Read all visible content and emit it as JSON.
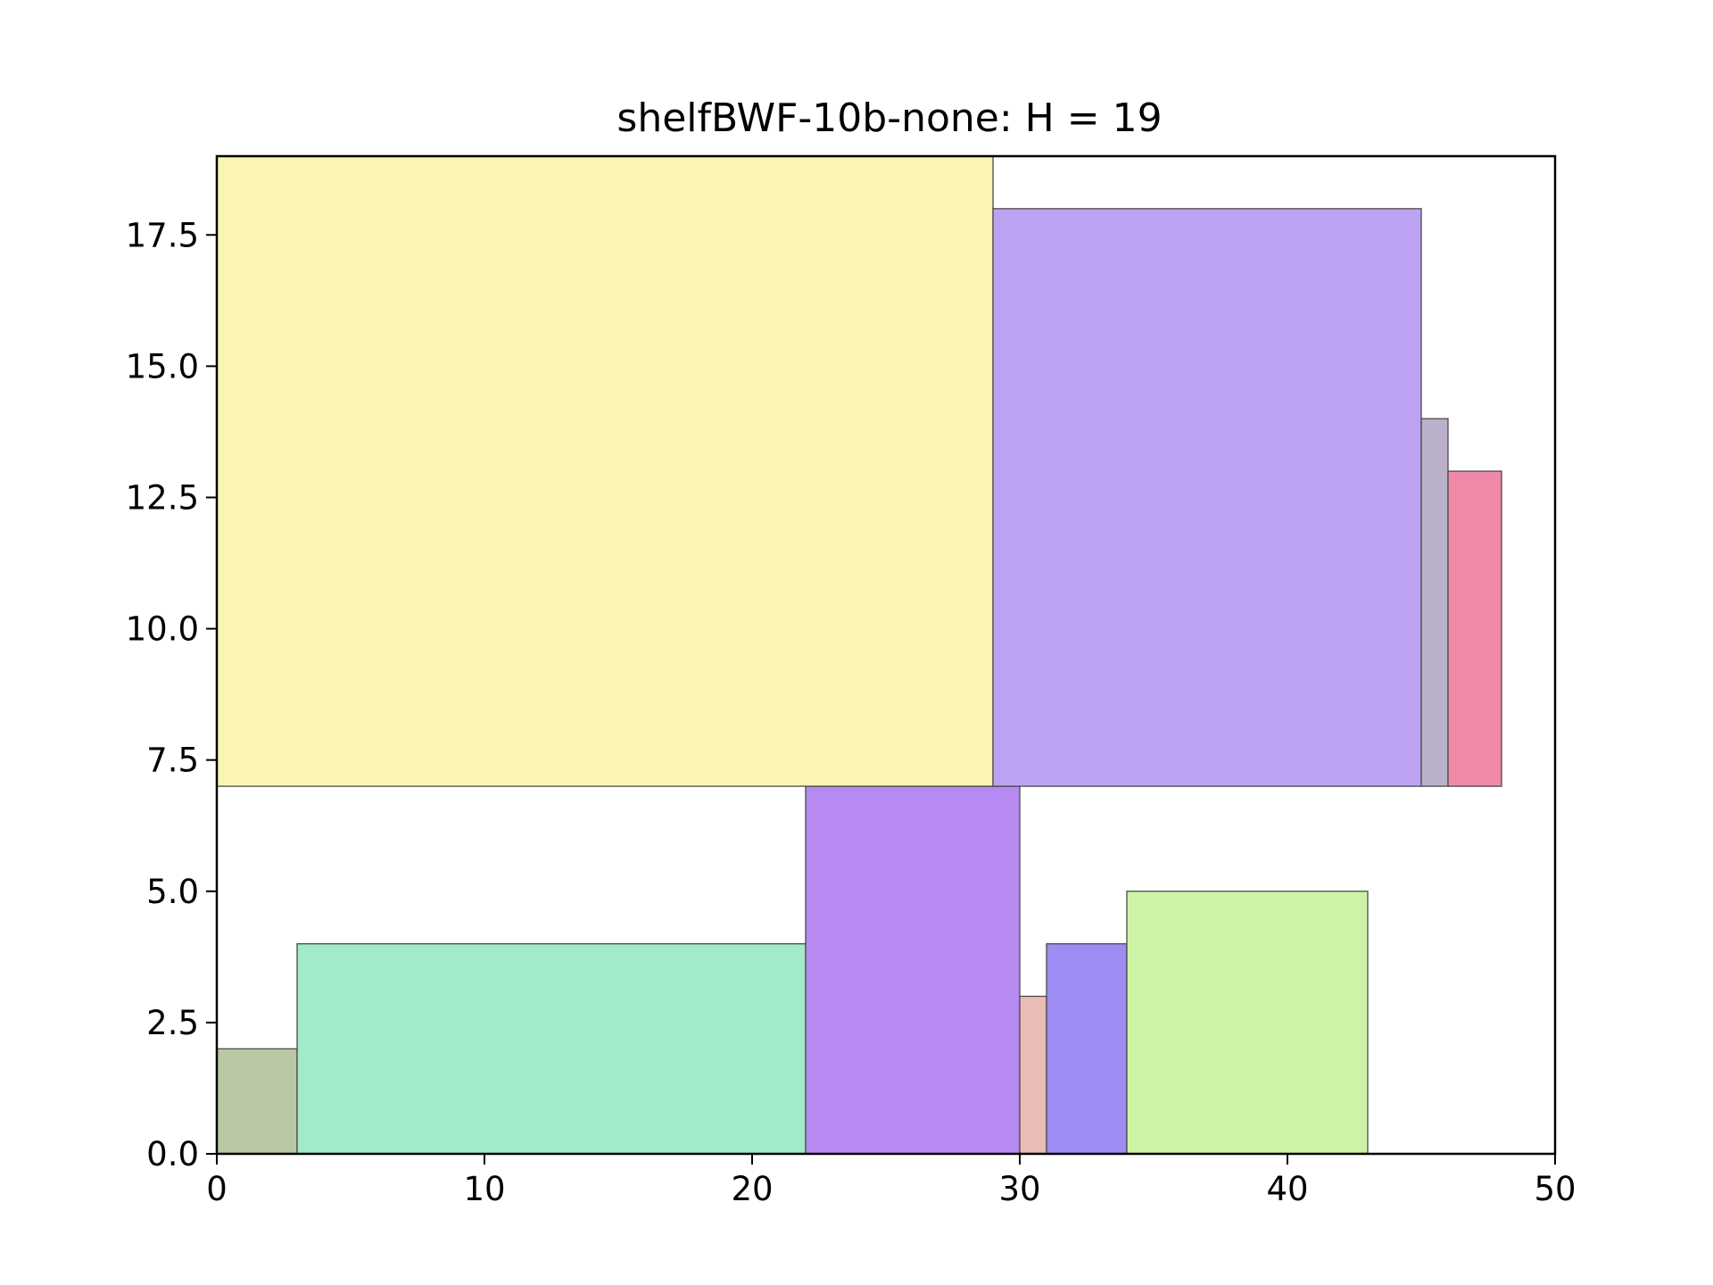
{
  "chart_data": {
    "type": "bar",
    "title": "shelfBWF-10b-none: H = 19",
    "xlabel": "",
    "ylabel": "",
    "xlim": [
      0,
      50
    ],
    "ylim": [
      0,
      19
    ],
    "xticks": [
      "0",
      "10",
      "20",
      "30",
      "40",
      "50"
    ],
    "yticks": [
      "0.0",
      "2.5",
      "5.0",
      "7.5",
      "10.0",
      "12.5",
      "15.0",
      "17.5"
    ],
    "grid": false,
    "legend": "none",
    "rectangles": [
      {
        "x": 0,
        "y": 0,
        "w": 3,
        "h": 2,
        "color": "#b8c7a4"
      },
      {
        "x": 3,
        "y": 0,
        "w": 19,
        "h": 4,
        "color": "#a2eac8"
      },
      {
        "x": 22,
        "y": 0,
        "w": 8,
        "h": 7,
        "color": "#b68af1"
      },
      {
        "x": 30,
        "y": 0,
        "w": 1,
        "h": 3,
        "color": "#e9bcb6"
      },
      {
        "x": 31,
        "y": 0,
        "w": 3,
        "h": 4,
        "color": "#9f8cf3"
      },
      {
        "x": 34,
        "y": 0,
        "w": 9,
        "h": 5,
        "color": "#cff3a6"
      },
      {
        "x": 0,
        "y": 7,
        "w": 29,
        "h": 12,
        "color": "#fbf5b2"
      },
      {
        "x": 29,
        "y": 7,
        "w": 16,
        "h": 11,
        "color": "#bda2f3"
      },
      {
        "x": 45,
        "y": 7,
        "w": 1,
        "h": 7,
        "color": "#bbb0c9"
      },
      {
        "x": 46,
        "y": 7,
        "w": 2,
        "h": 6,
        "color": "#ef89a7"
      }
    ]
  }
}
